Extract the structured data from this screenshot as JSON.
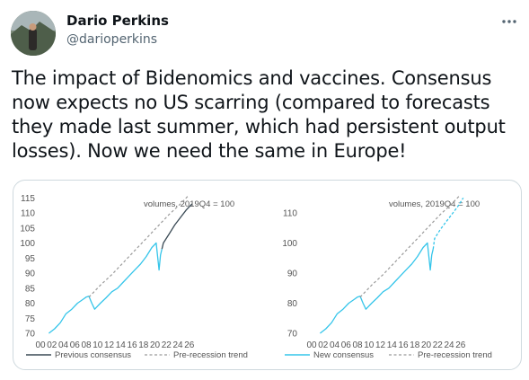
{
  "tweet": {
    "author": "Dario Perkins",
    "handle": "@darioperkins",
    "text": "The impact of Bidenomics and vaccines. Consensus now expects no US scarring (compared to forecasts they made last summer, which had persistent output losses). Now we need the same in Europe!",
    "more_icon": "more-horizontal-icon"
  },
  "colors": {
    "previous_consensus": "#3a4a55",
    "new_consensus": "#35c5ea",
    "actual": "#35c5ea",
    "trend": "#9a9a9a"
  },
  "chart_data": [
    {
      "type": "line",
      "title": "volumes, 2019Q4 = 100",
      "x_ticks": [
        "00",
        "02",
        "04",
        "06",
        "08",
        "10",
        "12",
        "14",
        "16",
        "18",
        "20",
        "22",
        "24",
        "26"
      ],
      "y_ticks": [
        70,
        75,
        80,
        85,
        90,
        95,
        100,
        105,
        110,
        115
      ],
      "xlim": [
        2000,
        2026.5
      ],
      "ylim": [
        67.5,
        116.5
      ],
      "legend": [
        "Previous consensus",
        "Pre-recession trend"
      ],
      "series": [
        {
          "name": "actual",
          "x": [
            2001,
            2002,
            2003,
            2004,
            2005,
            2006,
            2007,
            2007.5,
            2008,
            2008.5,
            2009,
            2009.5,
            2010,
            2011,
            2012,
            2013,
            2014,
            2015,
            2016,
            2017,
            2018,
            2019,
            2019.75,
            2020.25,
            2020.5,
            2020.75
          ],
          "y": [
            70,
            71.5,
            73.5,
            76.5,
            78,
            80,
            81.3,
            82,
            82.3,
            80,
            78,
            79,
            80,
            81.8,
            83.8,
            85,
            87,
            89,
            91,
            93,
            95.5,
            98.5,
            100,
            91,
            96,
            98
          ]
        },
        {
          "name": "Previous consensus",
          "x": [
            2020.75,
            2021,
            2022,
            2023,
            2024,
            2025,
            2026
          ],
          "y": [
            98,
            100,
            103,
            106,
            108.5,
            111,
            113
          ]
        },
        {
          "name": "Pre-recession trend",
          "x": [
            2008,
            2010,
            2012,
            2014,
            2016,
            2018,
            2020,
            2022,
            2024,
            2025.5
          ],
          "y": [
            82,
            86,
            89.5,
            93.5,
            97.5,
            101.5,
            105.5,
            109.5,
            113,
            116
          ]
        }
      ]
    },
    {
      "type": "line",
      "title": "volumes, 2019Q4 = 100",
      "x_ticks": [
        "00",
        "02",
        "04",
        "06",
        "08",
        "10",
        "12",
        "14",
        "16",
        "18",
        "20",
        "22",
        "24",
        "26"
      ],
      "y_ticks": [
        70,
        80,
        90,
        100,
        110
      ],
      "xlim": [
        2000,
        2026.5
      ],
      "ylim": [
        67.5,
        116.5
      ],
      "legend": [
        "New consensus",
        "Pre-recession trend"
      ],
      "series": [
        {
          "name": "actual",
          "x": [
            2001,
            2002,
            2003,
            2004,
            2005,
            2006,
            2007,
            2007.5,
            2008,
            2008.5,
            2009,
            2009.5,
            2010,
            2011,
            2012,
            2013,
            2014,
            2015,
            2016,
            2017,
            2018,
            2019,
            2019.75,
            2020.25,
            2020.5,
            2020.75
          ],
          "y": [
            70,
            71.5,
            73.5,
            76.5,
            78,
            80,
            81.3,
            82,
            82.3,
            80,
            78,
            79,
            80,
            81.8,
            83.8,
            85,
            87,
            89,
            91,
            93,
            95.5,
            98.5,
            100,
            91,
            96,
            98
          ]
        },
        {
          "name": "New consensus",
          "x": [
            2020.75,
            2021,
            2022,
            2023,
            2024,
            2025,
            2026
          ],
          "y": [
            98,
            101.5,
            104.5,
            107,
            109.5,
            112,
            115
          ]
        },
        {
          "name": "Pre-recession trend",
          "x": [
            2008,
            2010,
            2012,
            2014,
            2016,
            2018,
            2020,
            2022,
            2024,
            2025.5
          ],
          "y": [
            82,
            86,
            89.5,
            93.5,
            97.5,
            101.5,
            105.5,
            109.5,
            113,
            116
          ]
        }
      ]
    }
  ]
}
